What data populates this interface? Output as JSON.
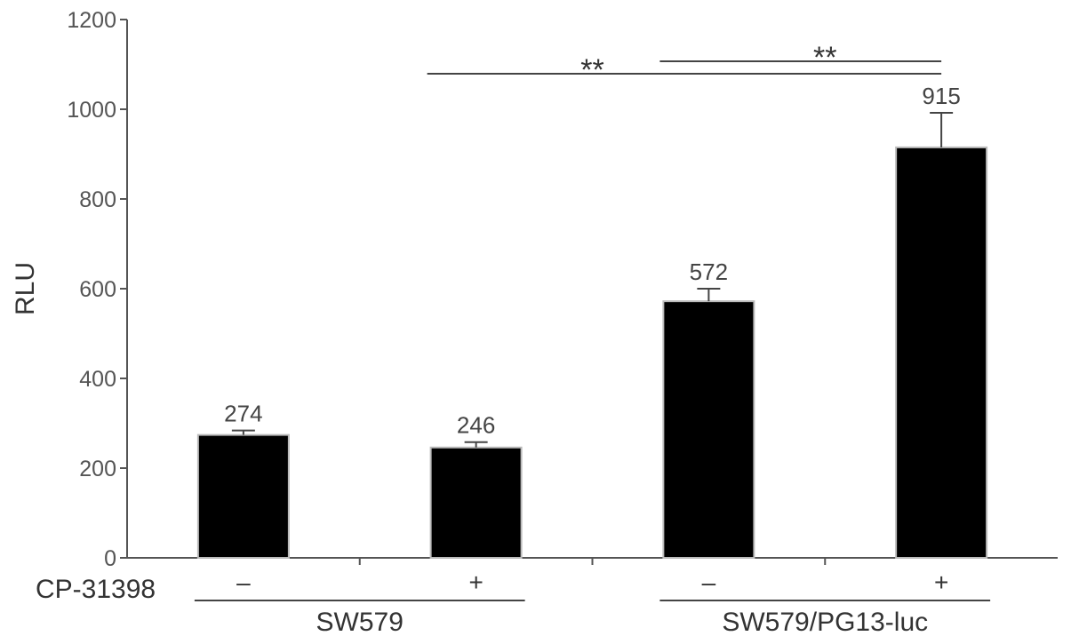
{
  "chart_data": {
    "type": "bar",
    "title": "",
    "xlabel": "",
    "ylabel": "RLU",
    "ylim": [
      0,
      1200
    ],
    "yticks": [
      0,
      200,
      400,
      600,
      800,
      1000,
      1200
    ],
    "categories": [
      "SW579 −",
      "SW579 +",
      "SW579/PG13-luc −",
      "SW579/PG13-luc +"
    ],
    "values": [
      274,
      246,
      572,
      915
    ],
    "error_upper": [
      284,
      258,
      600,
      992
    ],
    "data_labels": [
      "274",
      "246",
      "572",
      "915"
    ],
    "bar_color": "#000000",
    "treatment": {
      "label": "CP-31398",
      "signs": [
        "–",
        "+",
        "–",
        "+"
      ]
    },
    "groups": [
      {
        "label": "SW579",
        "bars": [
          0,
          1
        ]
      },
      {
        "label": "SW579/PG13-luc",
        "bars": [
          2,
          3
        ]
      }
    ],
    "significance": [
      {
        "from": 1,
        "to": 3,
        "text": "**"
      },
      {
        "from": 2,
        "to": 3,
        "text": "**"
      }
    ],
    "grid": false,
    "legend": "none"
  }
}
